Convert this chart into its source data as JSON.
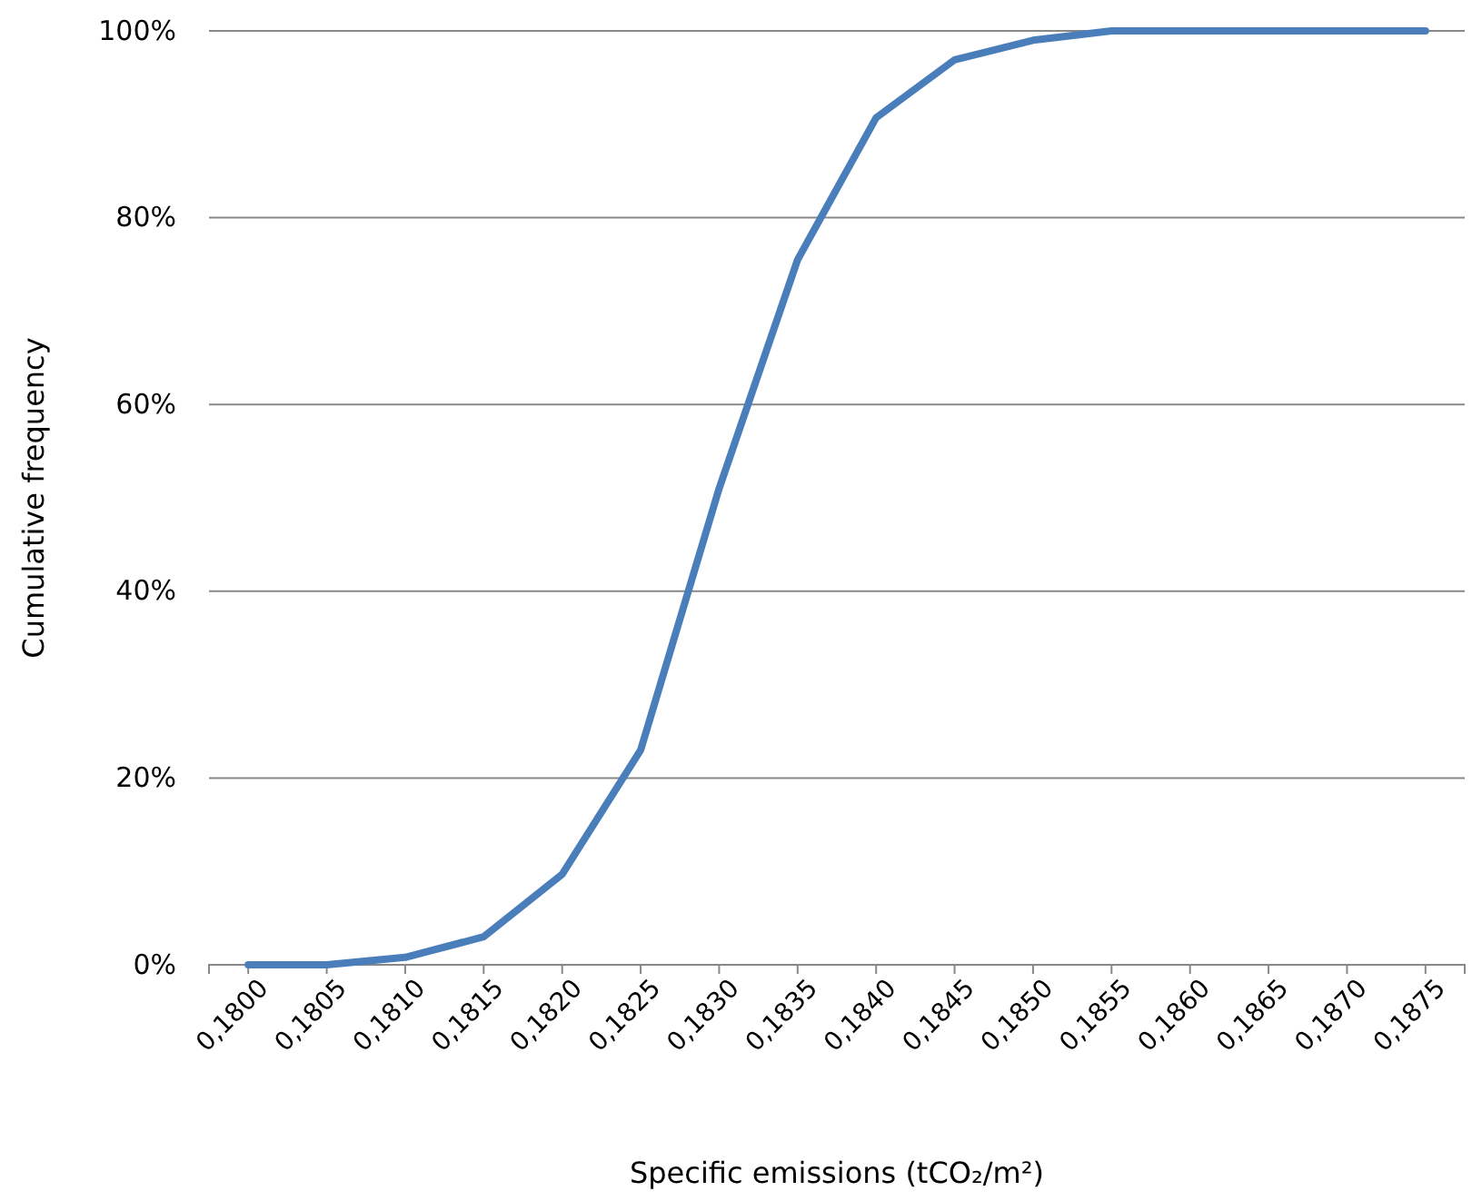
{
  "chart_data": {
    "type": "line",
    "xlabel": "Specific emissions (tCO₂/m²)",
    "ylabel": "Cumulative frequency",
    "categories": [
      "0,1800",
      "0,1805",
      "0,1810",
      "0,1815",
      "0,1820",
      "0,1825",
      "0,1830",
      "0,1835",
      "0,1840",
      "0,1845",
      "0,1850",
      "0,1855",
      "0,1860",
      "0,1865",
      "0,1870",
      "0,1875"
    ],
    "series": [
      {
        "color": "#4a7ebb",
        "values": [
          0,
          0,
          0.8,
          3,
          9.7,
          23,
          51,
          75.5,
          90.7,
          96.9,
          99,
          100,
          100,
          100,
          100,
          100
        ]
      }
    ],
    "ylim": [
      0,
      100
    ],
    "yticks": [
      {
        "value": 0,
        "label": "0%"
      },
      {
        "value": 20,
        "label": "20%"
      },
      {
        "value": 40,
        "label": "40%"
      },
      {
        "value": 60,
        "label": "60%"
      },
      {
        "value": 80,
        "label": "80%"
      },
      {
        "value": 100,
        "label": "100%"
      }
    ],
    "grid": "y",
    "marker": "none",
    "line_style": "solid"
  }
}
